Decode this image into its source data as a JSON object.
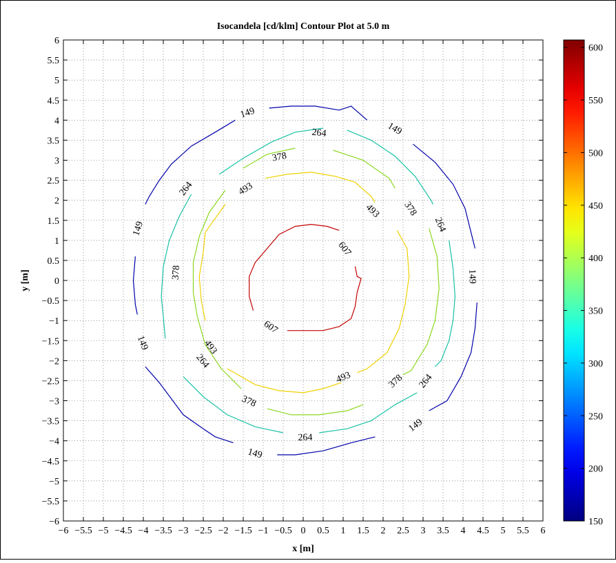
{
  "chart_data": {
    "type": "contour",
    "title": "Isocandela [cd/klm] Contour Plot at 5.0 m",
    "xlabel": "x [m]",
    "ylabel": "y [m]",
    "xlim": [
      -6,
      6
    ],
    "ylim": [
      -6,
      6
    ],
    "xticks": [
      -6,
      -5.5,
      -5,
      -4.5,
      -4,
      -3.5,
      -3,
      -2.5,
      -2,
      -1.5,
      -1,
      -0.5,
      0,
      0.5,
      1,
      1.5,
      2,
      2.5,
      3,
      3.5,
      4,
      4.5,
      5,
      5.5,
      6
    ],
    "yticks": [
      -6,
      -5.5,
      -5,
      -4.5,
      -4,
      -3.5,
      -3,
      -2.5,
      -2,
      -1.5,
      -1,
      -0.5,
      0,
      0.5,
      1,
      1.5,
      2,
      2.5,
      3,
      3.5,
      4,
      4.5,
      5,
      5.5,
      6
    ],
    "grid": true,
    "colorbar": {
      "min": 150,
      "max": 607,
      "ticks": [
        150,
        200,
        250,
        300,
        350,
        400,
        450,
        500,
        550,
        600
      ],
      "colormap": "jet"
    },
    "levels": [
      {
        "value": 149,
        "label": "149",
        "color": "#0000a8",
        "segments": [
          [
            [
              -1.7,
              4.0
            ],
            [
              -2.2,
              3.7
            ],
            [
              -2.8,
              3.35
            ],
            [
              -3.3,
              2.9
            ],
            [
              -3.6,
              2.5
            ],
            [
              -3.85,
              2.1
            ],
            [
              -3.95,
              1.9
            ]
          ],
          [
            [
              -0.85,
              4.3
            ],
            [
              -0.3,
              4.35
            ],
            [
              0.3,
              4.35
            ],
            [
              0.9,
              4.25
            ],
            [
              1.2,
              4.35
            ],
            [
              1.6,
              4.0
            ]
          ],
          [
            [
              2.75,
              3.4
            ],
            [
              3.3,
              2.95
            ],
            [
              3.75,
              2.4
            ],
            [
              4.05,
              1.8
            ],
            [
              4.25,
              1.0
            ],
            [
              4.3,
              0.8
            ]
          ],
          [
            [
              -4.2,
              0.6
            ],
            [
              -4.25,
              0.0
            ],
            [
              -4.2,
              -0.6
            ],
            [
              -4.15,
              -0.85
            ]
          ],
          [
            [
              4.35,
              -0.55
            ],
            [
              4.3,
              -1.2
            ],
            [
              4.2,
              -1.8
            ],
            [
              3.95,
              -2.4
            ],
            [
              3.6,
              -3.0
            ],
            [
              3.15,
              -3.25
            ]
          ],
          [
            [
              -3.95,
              -2.15
            ],
            [
              -3.6,
              -2.55
            ],
            [
              -3.0,
              -3.35
            ],
            [
              -2.5,
              -3.7
            ],
            [
              -2.2,
              -3.9
            ],
            [
              -1.75,
              -4.05
            ]
          ],
          [
            [
              -0.65,
              -4.35
            ],
            [
              -0.2,
              -4.35
            ],
            [
              0.5,
              -4.25
            ],
            [
              1.2,
              -4.05
            ],
            [
              1.8,
              -3.9
            ]
          ]
        ],
        "labels_at": [
          [
            -1.4,
            4.2
          ],
          [
            2.3,
            3.8
          ],
          [
            -4.15,
            1.3
          ],
          [
            4.25,
            0.1
          ],
          [
            -4.0,
            -1.55
          ],
          [
            2.8,
            -3.6
          ],
          [
            -1.2,
            -4.3
          ]
        ]
      },
      {
        "value": 264,
        "label": "264",
        "color": "#16c1a4",
        "segments": [
          [
            [
              -2.1,
              2.65
            ],
            [
              -1.5,
              3.05
            ],
            [
              -0.8,
              3.45
            ],
            [
              -0.2,
              3.7
            ],
            [
              0.5,
              3.8
            ]
          ],
          [
            [
              1.1,
              3.75
            ],
            [
              1.7,
              3.5
            ],
            [
              2.3,
              3.1
            ],
            [
              2.8,
              2.6
            ],
            [
              3.2,
              2.0
            ],
            [
              3.25,
              1.9
            ]
          ],
          [
            [
              -2.8,
              2.15
            ],
            [
              -3.1,
              1.6
            ],
            [
              -3.35,
              1.0
            ],
            [
              -3.5,
              0.35
            ],
            [
              -3.55,
              -0.4
            ],
            [
              -3.5,
              -0.9
            ],
            [
              -3.45,
              -1.45
            ]
          ],
          [
            [
              3.65,
              1.0
            ],
            [
              3.75,
              0.3
            ],
            [
              3.8,
              -0.4
            ],
            [
              3.75,
              -1.0
            ],
            [
              3.65,
              -1.5
            ],
            [
              3.45,
              -2.0
            ],
            [
              3.3,
              -2.15
            ]
          ],
          [
            [
              -3.0,
              -2.4
            ],
            [
              -2.5,
              -2.9
            ],
            [
              -1.9,
              -3.35
            ],
            [
              -1.2,
              -3.65
            ],
            [
              -0.5,
              -3.8
            ]
          ],
          [
            [
              0.4,
              -3.8
            ],
            [
              1.1,
              -3.7
            ],
            [
              1.7,
              -3.5
            ],
            [
              2.3,
              -3.1
            ],
            [
              2.85,
              -2.8
            ]
          ]
        ],
        "labels_at": [
          [
            0.4,
            3.7
          ],
          [
            -2.95,
            2.3
          ],
          [
            3.45,
            1.4
          ],
          [
            -2.5,
            -2.0
          ],
          [
            3.05,
            -2.5
          ],
          [
            0.05,
            -3.9
          ]
        ]
      },
      {
        "value": 378,
        "label": "378",
        "color": "#8cd820",
        "segments": [
          [
            [
              -0.2,
              3.3
            ],
            [
              -0.9,
              3.15
            ],
            [
              -1.5,
              2.8
            ]
          ],
          [
            [
              -1.95,
              2.25
            ],
            [
              -2.35,
              1.7
            ],
            [
              -2.6,
              1.1
            ],
            [
              -2.75,
              0.45
            ],
            [
              -2.75,
              -0.3
            ],
            [
              -2.65,
              -0.9
            ],
            [
              -2.45,
              -1.6
            ],
            [
              -2.05,
              -2.2
            ],
            [
              -1.55,
              -2.7
            ]
          ],
          [
            [
              0.75,
              3.25
            ],
            [
              1.5,
              3.0
            ],
            [
              2.15,
              2.55
            ],
            [
              2.3,
              2.3
            ]
          ],
          [
            [
              3.15,
              1.3
            ],
            [
              3.35,
              0.6
            ],
            [
              3.4,
              -0.2
            ],
            [
              3.3,
              -1.0
            ],
            [
              3.1,
              -1.6
            ],
            [
              2.7,
              -2.25
            ],
            [
              2.5,
              -2.35
            ]
          ],
          [
            [
              -0.9,
              -3.2
            ],
            [
              -0.3,
              -3.35
            ],
            [
              0.4,
              -3.35
            ],
            [
              1.1,
              -3.25
            ],
            [
              1.5,
              -3.1
            ]
          ]
        ],
        "labels_at": [
          [
            -0.6,
            3.1
          ],
          [
            2.7,
            1.8
          ],
          [
            -3.2,
            0.2
          ],
          [
            2.3,
            -2.5
          ],
          [
            -1.35,
            -3.0
          ]
        ]
      },
      {
        "value": 493,
        "label": "493",
        "color": "#f0d000",
        "segments": [
          [
            [
              -0.95,
              2.55
            ],
            [
              -0.4,
              2.65
            ],
            [
              0.2,
              2.7
            ],
            [
              0.8,
              2.6
            ],
            [
              1.3,
              2.45
            ],
            [
              1.7,
              2.1
            ],
            [
              1.8,
              1.95
            ]
          ],
          [
            [
              -1.95,
              1.9
            ],
            [
              -2.2,
              1.55
            ],
            [
              -2.45,
              1.2
            ],
            [
              -2.5,
              0.7
            ],
            [
              -2.6,
              0.1
            ],
            [
              -2.55,
              -0.5
            ],
            [
              -2.45,
              -1.0
            ]
          ],
          [
            [
              2.35,
              1.25
            ],
            [
              2.6,
              0.8
            ],
            [
              2.65,
              0.1
            ],
            [
              2.55,
              -0.6
            ],
            [
              2.4,
              -1.2
            ],
            [
              2.1,
              -1.8
            ],
            [
              1.6,
              -2.2
            ],
            [
              1.35,
              -2.3
            ]
          ],
          [
            [
              -1.9,
              -2.2
            ],
            [
              -1.2,
              -2.6
            ],
            [
              -0.6,
              -2.75
            ],
            [
              0.0,
              -2.8
            ],
            [
              0.5,
              -2.7
            ],
            [
              0.95,
              -2.55
            ]
          ]
        ],
        "labels_at": [
          [
            -1.45,
            2.3
          ],
          [
            1.75,
            1.75
          ],
          [
            -2.3,
            -1.65
          ],
          [
            1.0,
            -2.4
          ]
        ]
      },
      {
        "value": 607,
        "label": "607",
        "color": "#c20000",
        "segments": [
          [
            [
              0.9,
              1.25
            ],
            [
              0.6,
              1.35
            ],
            [
              0.2,
              1.4
            ],
            [
              -0.2,
              1.35
            ],
            [
              -0.6,
              1.15
            ],
            [
              -0.9,
              0.8
            ],
            [
              -1.2,
              0.45
            ],
            [
              -1.35,
              0.1
            ],
            [
              -1.35,
              -0.4
            ],
            [
              -1.25,
              -0.75
            ]
          ],
          [
            [
              1.3,
              0.35
            ],
            [
              1.35,
              0.1
            ],
            [
              1.45,
              0.05
            ],
            [
              1.35,
              -0.3
            ],
            [
              1.3,
              -0.65
            ],
            [
              1.2,
              -0.95
            ],
            [
              0.9,
              -1.15
            ],
            [
              0.5,
              -1.25
            ],
            [
              0.0,
              -1.25
            ],
            [
              -0.4,
              -1.25
            ]
          ]
        ],
        "labels_at": [
          [
            1.05,
            0.8
          ],
          [
            -0.8,
            -1.15
          ]
        ]
      }
    ]
  }
}
